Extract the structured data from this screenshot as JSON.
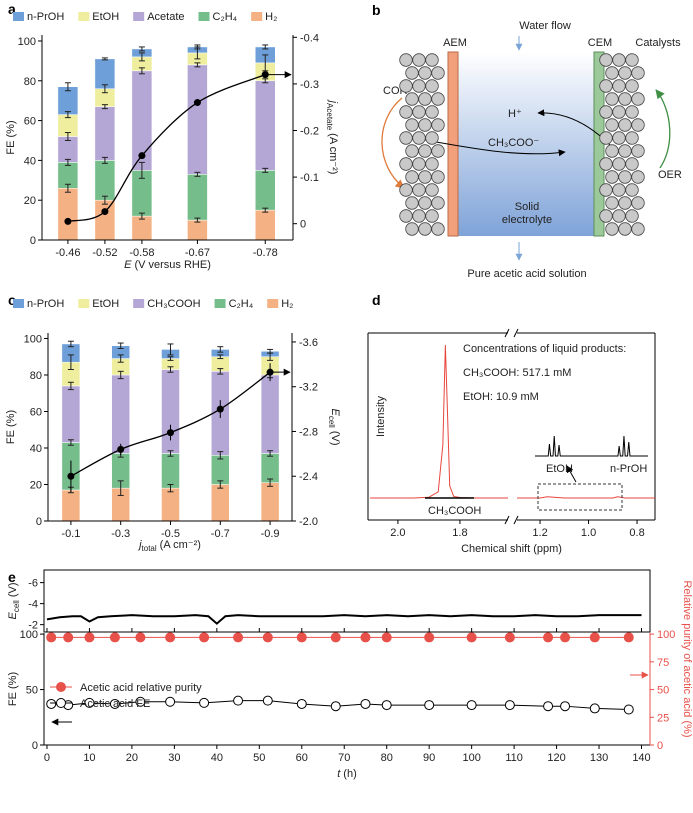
{
  "chart_data": [
    {
      "type": "stacked_bar",
      "panel": "a",
      "x": [
        -0.46,
        -0.52,
        -0.58,
        -0.67,
        -0.78
      ],
      "xlim": [
        -0.418,
        -0.825
      ],
      "xticks": [
        -0.46,
        -0.52,
        -0.58,
        -0.67,
        -0.78
      ],
      "x_label": {
        "symbol": "E",
        "unit": "(V versus RHE)"
      },
      "y_label": "FE (%)",
      "ylim": [
        0,
        103
      ],
      "yticks": [
        0,
        20,
        40,
        60,
        80,
        100
      ],
      "y2_label": {
        "symbol": "j",
        "subscript": "Acetate",
        "unit": "(A cm⁻²)"
      },
      "y2lim": [
        0.035,
        -0.405
      ],
      "y2ticks": [
        0,
        -0.1,
        -0.2,
        -0.3,
        -0.4
      ],
      "series": [
        {
          "name": "H₂",
          "color": "#f4b183",
          "values": [
            26,
            20,
            12,
            10,
            15
          ],
          "errors": [
            2,
            2,
            1.5,
            1,
            1
          ]
        },
        {
          "name": "C₂H₄",
          "color": "#76bd8c",
          "values": [
            13,
            20,
            23,
            23,
            20
          ],
          "errors": [
            1.5,
            1.5,
            4,
            1,
            1
          ]
        },
        {
          "name": "Acetate",
          "color": "#b4a7d6",
          "values": [
            13,
            27,
            50,
            55,
            45
          ],
          "errors": [
            2,
            1,
            1.5,
            1,
            1
          ]
        },
        {
          "name": "EtOH",
          "color": "#eeee9e",
          "values": [
            11,
            9,
            7,
            6,
            9
          ],
          "errors": [
            1.5,
            2,
            2,
            3,
            4
          ]
        },
        {
          "name": "n-PrOH",
          "color": "#6f9fd8",
          "values": [
            14,
            15,
            4,
            3,
            8
          ],
          "errors": [
            2,
            0.5,
            1,
            1,
            1
          ]
        }
      ],
      "line": {
        "axis": "y2",
        "color": "#000000",
        "values": [
          -0.005,
          -0.026,
          -0.146,
          -0.26,
          -0.32
        ]
      }
    },
    {
      "type": "stacked_bar",
      "panel": "c",
      "x": [
        -0.1,
        -0.3,
        -0.5,
        -0.7,
        -0.9
      ],
      "xlim": [
        -0.008,
        -0.988
      ],
      "xticks": [
        -0.1,
        -0.3,
        -0.5,
        -0.7,
        -0.9
      ],
      "x_label": {
        "symbol": "j",
        "subscript": "total",
        "unit": "(A cm⁻²)"
      },
      "y_label": "FE (%)",
      "ylim": [
        0,
        103
      ],
      "yticks": [
        0,
        20,
        40,
        60,
        80,
        100
      ],
      "y2_label": {
        "symbol": "E",
        "subscript": "cell",
        "unit": "(V)"
      },
      "y2lim": [
        -2.0,
        -3.68
      ],
      "y2ticks": [
        {
          "value": -2,
          "label": "-2.0"
        },
        -2.4,
        -2.8,
        -3.2,
        -3.6
      ],
      "series": [
        {
          "name": "H₂",
          "color": "#f4b183",
          "values": [
            17,
            18,
            18,
            20,
            21
          ],
          "errors": [
            1.5,
            4,
            2,
            2,
            2
          ]
        },
        {
          "name": "C₂H₄",
          "color": "#76bd8c",
          "values": [
            26,
            19,
            19,
            16,
            16
          ],
          "errors": [
            1.5,
            2,
            1.5,
            2,
            1.5
          ]
        },
        {
          "name": "CH₃COOH",
          "color": "#b4a7d6",
          "values": [
            31,
            43,
            46,
            46,
            43
          ],
          "errors": [
            2,
            2,
            1.5,
            1.5,
            1.5
          ]
        },
        {
          "name": "EtOH",
          "color": "#eeee9e",
          "values": [
            13,
            9,
            6,
            8,
            10
          ],
          "errors": [
            4,
            2,
            1,
            1,
            2
          ]
        },
        {
          "name": "n-PrOH",
          "color": "#6f9fd8",
          "values": [
            10,
            7,
            5,
            4,
            3
          ],
          "errors": [
            1.5,
            1.5,
            3,
            1.5,
            1
          ]
        }
      ],
      "line": {
        "axis": "y2",
        "color": "#000000",
        "values": [
          -2.4,
          -2.64,
          -2.79,
          -3.0,
          -3.33
        ],
        "errors": [
          0.14,
          0.05,
          0.07,
          0.08,
          0.08
        ]
      }
    },
    {
      "type": "spectrum",
      "panel": "d",
      "x_label": "Chemical shift (ppm)",
      "y_label": "Intensity",
      "xlim_segments": [
        [
          2.09,
          1.645
        ],
        [
          1.295,
          0.726
        ]
      ],
      "xticks": [
        {
          "value": 2,
          "label": "2.0"
        },
        1.8,
        1.2,
        {
          "value": 1,
          "label": "1.0"
        },
        0.8
      ],
      "color": "#e8463c",
      "x": [
        2.09,
        1.95,
        1.9,
        1.87,
        1.855,
        1.847,
        1.84,
        1.833,
        1.82,
        1.8,
        1.75,
        1.645,
        1.295,
        1.2,
        1.17,
        1.1,
        0.9,
        0.88,
        0.85,
        0.726
      ],
      "values": [
        0,
        0,
        0.5,
        4,
        35,
        100,
        55,
        8,
        1,
        0.3,
        0,
        0,
        0,
        0,
        0.8,
        0,
        0,
        0.8,
        0,
        0
      ],
      "inset": {
        "color": "#000000",
        "xlim": [
          1.25,
          0.78
        ],
        "x": [
          1.25,
          1.195,
          1.19,
          1.185,
          1.175,
          1.17,
          1.165,
          1.155,
          1.15,
          1.145,
          0.905,
          0.9,
          0.895,
          0.885,
          0.88,
          0.875,
          0.865,
          0.86,
          0.855,
          0.78
        ],
        "values": [
          0,
          0,
          60,
          0,
          0,
          100,
          0,
          0,
          55,
          0,
          0,
          50,
          0,
          0,
          100,
          0,
          0,
          70,
          0,
          0
        ]
      },
      "annotations": [
        "Concentrations of liquid products:",
        "CH₃COOH: 517.1 mM",
        "EtOH: 10.9 mM"
      ],
      "peak_labels": [
        "CH₃COOH",
        "EtOH",
        "n-PrOH"
      ]
    },
    {
      "type": "line",
      "panel": "e",
      "xlim": [
        -0.7,
        142
      ],
      "ylim": [
        -1.3,
        -7.2
      ],
      "yticks": [
        -6,
        -4,
        -2
      ],
      "y_label": {
        "symbol": "E",
        "subscript": "cell",
        "unit": "(V)"
      },
      "color": "#000000",
      "x": [
        0,
        3,
        6,
        8,
        10,
        12,
        15,
        20,
        25,
        30,
        35,
        38,
        40,
        42,
        45,
        50,
        55,
        60,
        65,
        70,
        75,
        80,
        85,
        90,
        95,
        100,
        105,
        110,
        115,
        120,
        125,
        130,
        135,
        140
      ],
      "values": [
        -2.5,
        -2.7,
        -2.8,
        -2.8,
        -2.3,
        -2.7,
        -2.8,
        -2.9,
        -2.8,
        -2.8,
        -2.9,
        -2.8,
        -2.1,
        -2.8,
        -2.9,
        -2.8,
        -2.8,
        -2.8,
        -2.8,
        -2.9,
        -2.8,
        -2.9,
        -2.8,
        -2.9,
        -2.8,
        -2.9,
        -2.8,
        -2.8,
        -2.9,
        -2.8,
        -2.8,
        -2.9,
        -2.9,
        -2.9
      ]
    },
    {
      "type": "line_markers",
      "xlim": [
        -0.7,
        142
      ],
      "xticks": [
        0,
        10,
        20,
        30,
        40,
        50,
        60,
        70,
        80,
        90,
        100,
        110,
        120,
        130,
        140
      ],
      "x_label": {
        "symbol": "t",
        "unit": "(h)"
      },
      "y_label": "FE (%)",
      "ylim": [
        0,
        101
      ],
      "yticks": [
        0,
        50,
        100
      ],
      "y2_label": "Relative purity of acetic acid (%)",
      "y2lim": [
        0,
        101
      ],
      "y2ticks": [
        0,
        25,
        50,
        75,
        100
      ],
      "y2_color": "#e8504a",
      "x": [
        1,
        5,
        10,
        16,
        22,
        29,
        37,
        45,
        52,
        60,
        68,
        75,
        80,
        90,
        100,
        109,
        118,
        122,
        129,
        137
      ],
      "series": [
        {
          "name": "Acetic acid relative purity",
          "color": "#e8504a",
          "axis": "y2",
          "marker": "filled",
          "values": [
            97,
            97,
            97,
            97,
            97,
            97,
            97,
            97,
            97,
            97,
            97,
            97,
            97,
            97,
            97,
            97,
            97,
            97,
            97,
            97
          ]
        },
        {
          "name": "Acetic acid FE",
          "color": "#000000",
          "marker": "open",
          "values": [
            37,
            36,
            38,
            37,
            39,
            39,
            38,
            40,
            40,
            37,
            35,
            37,
            36,
            36,
            36,
            36,
            35,
            35,
            33,
            32
          ]
        }
      ]
    }
  ],
  "diagram": {
    "panel": "b",
    "water_flow": "Water flow",
    "aem": "AEM",
    "cem": "CEM",
    "catalysts": "Catalysts",
    "cor": "COR",
    "oer": "OER",
    "proton": "H⁺",
    "acetate_ion": "CH₃COO⁻",
    "electrolyte": [
      "Solid",
      "electrolyte"
    ],
    "product": "Pure acetic acid solution"
  }
}
